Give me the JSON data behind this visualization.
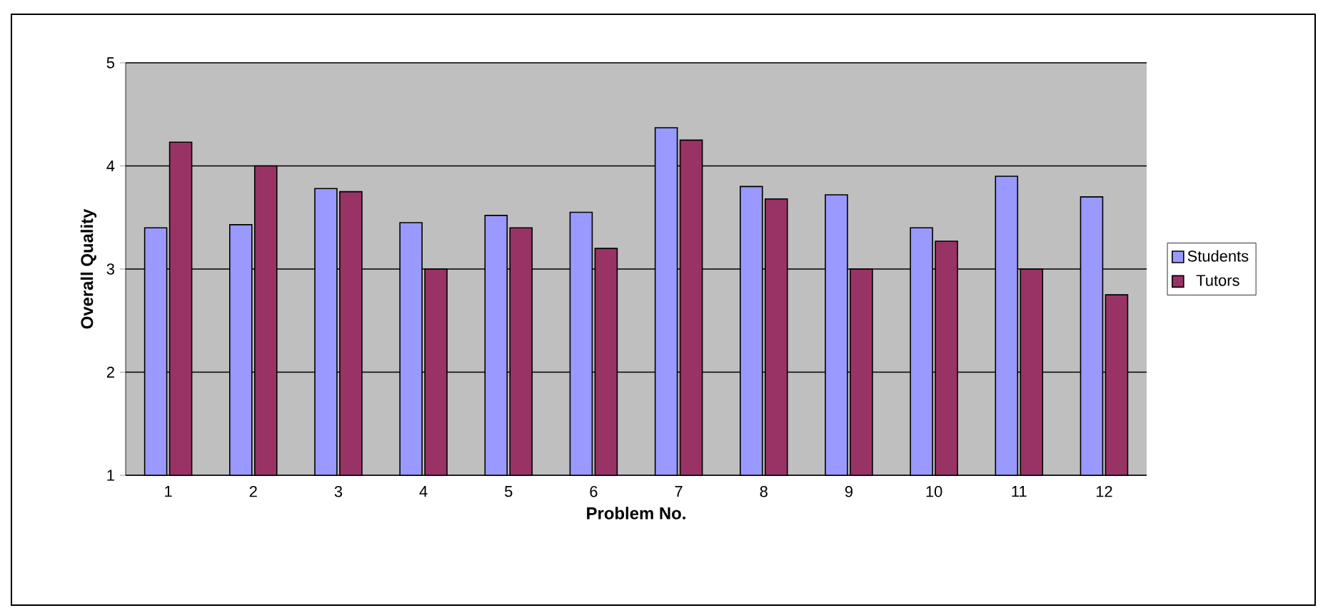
{
  "chart_data": {
    "type": "bar",
    "xlabel": "Problem No.",
    "ylabel": "Overall Quality",
    "categories": [
      "1",
      "2",
      "3",
      "4",
      "5",
      "6",
      "7",
      "8",
      "9",
      "10",
      "11",
      "12"
    ],
    "series": [
      {
        "name": "Students",
        "color": "#9999ff",
        "values": [
          3.4,
          3.43,
          3.78,
          3.45,
          3.52,
          3.55,
          4.37,
          3.8,
          3.72,
          3.4,
          3.9,
          3.7
        ]
      },
      {
        "name": "Tutors",
        "color": "#993366",
        "values": [
          4.23,
          4.0,
          3.75,
          3.0,
          3.4,
          3.2,
          4.25,
          3.68,
          3.0,
          3.27,
          3.0,
          2.75
        ]
      }
    ],
    "ylim": [
      1,
      5
    ],
    "yticks": [
      1,
      2,
      3,
      4,
      5
    ],
    "grid": "y",
    "legend": "right"
  }
}
